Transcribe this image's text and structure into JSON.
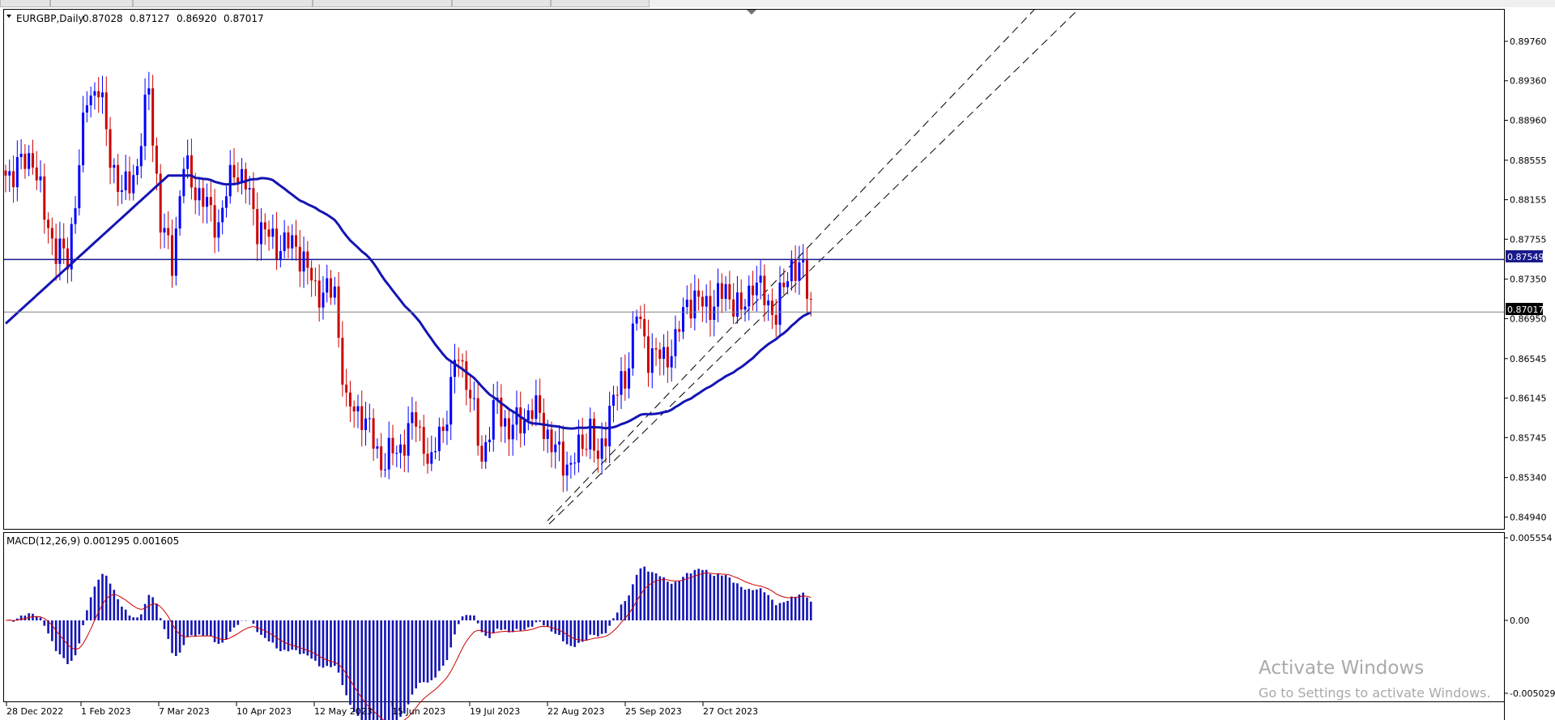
{
  "header": {
    "symbol": "EURGBP,Daily",
    "open": "0.87028",
    "high": "0.87127",
    "low": "0.86920",
    "close": "0.87017"
  },
  "chart_data": [
    {
      "type": "candlestick",
      "y_ticks": [
        "0.89760",
        "0.89360",
        "0.88960",
        "0.88555",
        "0.88155",
        "0.87755",
        "0.87350",
        "0.86950",
        "0.86545",
        "0.86145",
        "0.85745",
        "0.85340",
        "0.84940"
      ],
      "ylim": [
        0.8482,
        0.9008
      ],
      "x_ticks": [
        "28 Dec 2022",
        "1 Feb 2023",
        "7 Mar 2023",
        "10 Apr 2023",
        "12 May 2023",
        "15 Jun 2023",
        "19 Jul 2023",
        "22 Aug 2023",
        "25 Sep 2023",
        "27 Oct 2023"
      ],
      "horizontal_line": {
        "value": 0.87549,
        "label": "0.87549",
        "color": "#1a1a8c"
      },
      "current_price": {
        "value": 0.87017,
        "label": "0.87017"
      },
      "moving_average_color": "#1414b4",
      "bull_color": "#0000ff",
      "bear_color": "#cc0000",
      "trend_lines": "two dashed parallel ascending lines"
    },
    {
      "type": "bar",
      "title": "MACD(12,26,9) 0.001295 0.001605",
      "y_ticks": [
        "0.005554",
        "0.00",
        "-0.005029"
      ],
      "ylim": [
        -0.005029,
        0.005554
      ],
      "histogram_color": "#1414b4",
      "signal_color": "#cc0000"
    }
  ],
  "watermark": {
    "line1": "Activate Windows",
    "line2": "Go to Settings to activate Windows."
  }
}
